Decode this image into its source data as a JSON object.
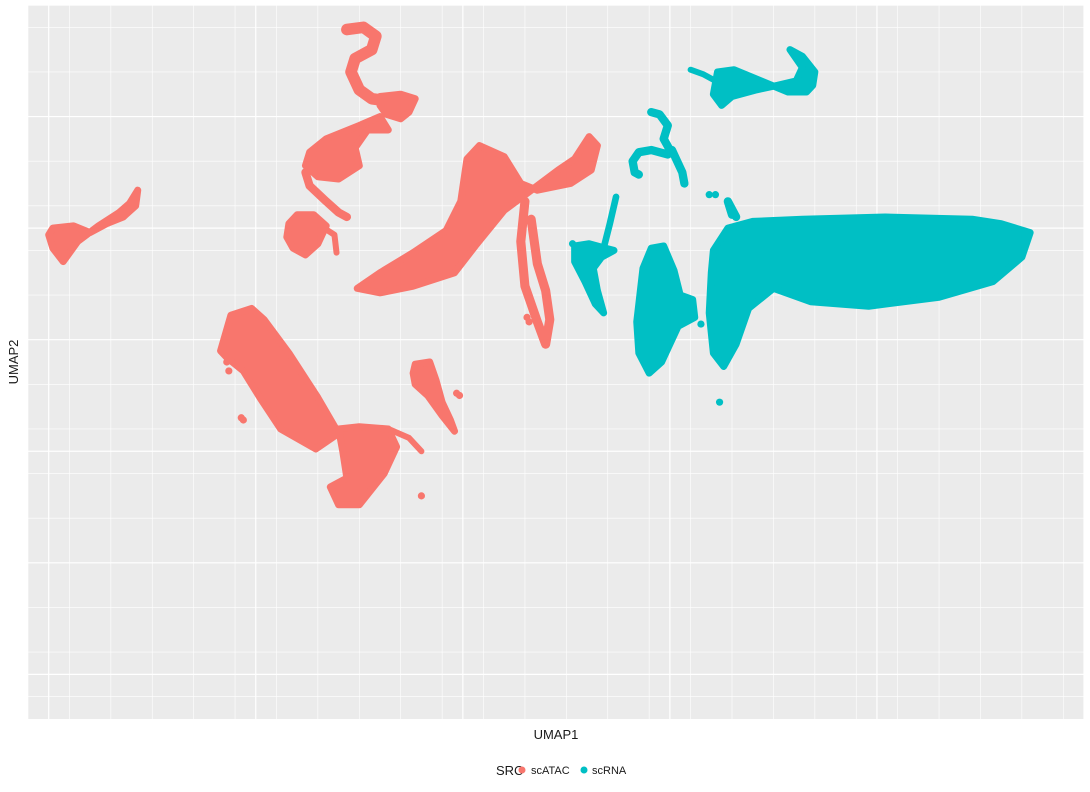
{
  "chart_data": {
    "type": "scatter",
    "xlabel": "UMAP1",
    "ylabel": "UMAP2",
    "xlim": [
      -15.5,
      10.0
    ],
    "ylim": [
      -11.0,
      5.0
    ],
    "grid": true,
    "legend": {
      "title": "SRC",
      "position": "bottom",
      "entries": [
        {
          "name": "scATAC",
          "color": "#F8766D"
        },
        {
          "name": "scRNA",
          "color": "#00BFC4"
        }
      ]
    },
    "series": [
      {
        "name": "scATAC",
        "color": "#F8766D",
        "clusters": [
          {
            "shape": "polyline",
            "width": 0.28,
            "points": [
              [
                -7.8,
                4.45
              ],
              [
                -7.4,
                4.5
              ],
              [
                -7.1,
                4.3
              ],
              [
                -7.2,
                4.0
              ],
              [
                -7.6,
                3.8
              ],
              [
                -7.7,
                3.5
              ],
              [
                -7.5,
                3.1
              ],
              [
                -7.2,
                2.9
              ],
              [
                -6.8,
                2.85
              ]
            ]
          },
          {
            "shape": "polygon",
            "points": [
              [
                -7.0,
                2.95
              ],
              [
                -6.5,
                3.0
              ],
              [
                -6.15,
                2.9
              ],
              [
                -6.3,
                2.6
              ],
              [
                -6.5,
                2.45
              ],
              [
                -6.85,
                2.55
              ],
              [
                -7.0,
                2.75
              ]
            ]
          },
          {
            "shape": "polygon",
            "points": [
              [
                -8.7,
                1.7
              ],
              [
                -8.3,
                2.0
              ],
              [
                -7.5,
                2.3
              ],
              [
                -7.0,
                2.5
              ],
              [
                -6.8,
                2.2
              ],
              [
                -7.3,
                2.2
              ],
              [
                -7.6,
                1.8
              ],
              [
                -7.5,
                1.4
              ],
              [
                -8.0,
                1.1
              ],
              [
                -8.5,
                1.15
              ],
              [
                -8.8,
                1.4
              ]
            ]
          },
          {
            "shape": "polyline",
            "width": 0.2,
            "points": [
              [
                -8.8,
                1.25
              ],
              [
                -8.7,
                0.95
              ],
              [
                -8.3,
                0.6
              ],
              [
                -8.0,
                0.35
              ],
              [
                -7.8,
                0.25
              ]
            ]
          },
          {
            "shape": "polygon",
            "points": [
              [
                -14.9,
                0.0
              ],
              [
                -14.4,
                0.05
              ],
              [
                -14.0,
                -0.1
              ],
              [
                -13.6,
                0.1
              ],
              [
                -13.2,
                0.25
              ],
              [
                -12.9,
                0.5
              ],
              [
                -12.85,
                0.85
              ],
              [
                -13.05,
                0.55
              ],
              [
                -13.3,
                0.35
              ],
              [
                -13.8,
                0.05
              ],
              [
                -14.3,
                -0.3
              ],
              [
                -14.65,
                -0.75
              ],
              [
                -14.9,
                -0.45
              ],
              [
                -15.0,
                -0.15
              ]
            ]
          },
          {
            "shape": "polygon",
            "points": [
              [
                -9.2,
                0.1
              ],
              [
                -9.0,
                0.3
              ],
              [
                -8.6,
                0.3
              ],
              [
                -8.3,
                0.05
              ],
              [
                -8.5,
                -0.35
              ],
              [
                -8.8,
                -0.6
              ],
              [
                -9.1,
                -0.45
              ],
              [
                -9.25,
                -0.2
              ]
            ]
          },
          {
            "shape": "polyline",
            "width": 0.12,
            "points": [
              [
                -8.35,
                0.0
              ],
              [
                -8.1,
                -0.15
              ],
              [
                -8.05,
                -0.55
              ]
            ]
          },
          {
            "shape": "polygon",
            "points": [
              [
                -7.55,
                -1.35
              ],
              [
                -7.0,
                -1.0
              ],
              [
                -6.2,
                -0.55
              ],
              [
                -5.4,
                -0.05
              ],
              [
                -5.05,
                0.6
              ],
              [
                -4.9,
                1.55
              ],
              [
                -4.6,
                1.85
              ],
              [
                -4.0,
                1.6
              ],
              [
                -3.6,
                1.0
              ],
              [
                -3.2,
                0.85
              ],
              [
                -2.4,
                1.0
              ],
              [
                -1.9,
                1.3
              ],
              [
                -1.75,
                1.85
              ],
              [
                -1.95,
                2.05
              ],
              [
                -2.3,
                1.55
              ],
              [
                -2.7,
                1.3
              ],
              [
                -3.2,
                0.95
              ],
              [
                -4.0,
                0.4
              ],
              [
                -4.7,
                -0.4
              ],
              [
                -5.2,
                -1.0
              ],
              [
                -6.2,
                -1.3
              ],
              [
                -7.0,
                -1.45
              ]
            ]
          },
          {
            "shape": "polyline",
            "width": 0.22,
            "points": [
              [
                -3.5,
                0.6
              ],
              [
                -3.6,
                -0.3
              ],
              [
                -3.5,
                -1.3
              ],
              [
                -3.2,
                -2.1
              ],
              [
                -3.0,
                -2.6
              ],
              [
                -2.9,
                -2.05
              ],
              [
                -3.0,
                -1.4
              ],
              [
                -3.2,
                -0.8
              ],
              [
                -3.35,
                0.2
              ]
            ]
          },
          {
            "shape": "polygon",
            "points": [
              [
                -10.85,
                -2.75
              ],
              [
                -10.6,
                -1.95
              ],
              [
                -10.1,
                -1.8
              ],
              [
                -9.8,
                -2.05
              ],
              [
                -9.2,
                -2.8
              ],
              [
                -8.5,
                -3.8
              ],
              [
                -8.0,
                -4.6
              ],
              [
                -8.55,
                -4.95
              ],
              [
                -9.4,
                -4.5
              ],
              [
                -9.9,
                -3.8
              ],
              [
                -10.3,
                -3.2
              ],
              [
                -10.7,
                -2.9
              ]
            ]
          },
          {
            "shape": "polygon",
            "points": [
              [
                -8.0,
                -4.5
              ],
              [
                -7.5,
                -4.45
              ],
              [
                -6.8,
                -4.5
              ],
              [
                -6.6,
                -4.9
              ],
              [
                -6.9,
                -5.5
              ],
              [
                -7.5,
                -6.2
              ],
              [
                -8.0,
                -6.2
              ],
              [
                -8.2,
                -5.8
              ],
              [
                -7.8,
                -5.6
              ],
              [
                -7.9,
                -5.0
              ]
            ]
          },
          {
            "shape": "polyline",
            "width": 0.12,
            "points": [
              [
                -6.8,
                -4.5
              ],
              [
                -6.3,
                -4.7
              ],
              [
                -6.0,
                -5.0
              ]
            ]
          },
          {
            "shape": "polygon",
            "points": [
              [
                -6.15,
                -3.05
              ],
              [
                -5.8,
                -3.0
              ],
              [
                -5.65,
                -3.4
              ],
              [
                -5.5,
                -3.9
              ],
              [
                -5.3,
                -4.3
              ],
              [
                -5.2,
                -4.55
              ],
              [
                -5.5,
                -4.2
              ],
              [
                -5.85,
                -3.75
              ],
              [
                -6.15,
                -3.5
              ],
              [
                -6.2,
                -3.25
              ]
            ]
          },
          {
            "shape": "points",
            "points": [
              [
                -10.35,
                -4.25
              ],
              [
                -10.3,
                -4.3
              ],
              [
                -5.15,
                -3.7
              ],
              [
                -5.08,
                -3.75
              ],
              [
                -6.0,
                -6.0
              ],
              [
                -10.7,
                -3.0
              ],
              [
                -10.65,
                -3.2
              ],
              [
                -3.45,
                -2.0
              ],
              [
                -3.4,
                -2.1
              ]
            ]
          }
        ]
      },
      {
        "name": "scRNA",
        "color": "#00BFC4",
        "clusters": [
          {
            "shape": "polygon",
            "points": [
              [
                -0.8,
                -2.1
              ],
              [
                -0.65,
                -0.9
              ],
              [
                -0.45,
                -0.45
              ],
              [
                -0.15,
                -0.4
              ],
              [
                0.1,
                -0.95
              ],
              [
                0.25,
                -1.5
              ],
              [
                0.55,
                -1.6
              ],
              [
                0.6,
                -2.0
              ],
              [
                0.2,
                -2.2
              ],
              [
                -0.2,
                -3.0
              ],
              [
                -0.5,
                -3.25
              ],
              [
                -0.75,
                -2.8
              ]
            ]
          },
          {
            "shape": "polygon",
            "points": [
              [
                1.0,
                -1.0
              ],
              [
                1.05,
                -0.5
              ],
              [
                1.4,
                0.0
              ],
              [
                2.0,
                0.15
              ],
              [
                3.2,
                0.2
              ],
              [
                5.2,
                0.25
              ],
              [
                7.3,
                0.2
              ],
              [
                8.0,
                0.1
              ],
              [
                8.7,
                -0.1
              ],
              [
                8.5,
                -0.65
              ],
              [
                7.8,
                -1.2
              ],
              [
                6.5,
                -1.55
              ],
              [
                4.8,
                -1.75
              ],
              [
                3.4,
                -1.65
              ],
              [
                2.5,
                -1.35
              ],
              [
                1.9,
                -1.8
              ],
              [
                1.6,
                -2.6
              ],
              [
                1.3,
                -3.1
              ],
              [
                1.05,
                -2.8
              ],
              [
                0.95,
                -1.9
              ]
            ]
          },
          {
            "shape": "polyline",
            "width": 0.2,
            "points": [
              [
                1.5,
                0.3
              ],
              [
                1.4,
                0.6
              ],
              [
                1.6,
                0.25
              ]
            ]
          },
          {
            "shape": "polygon",
            "points": [
              [
                -2.3,
                -0.4
              ],
              [
                -1.95,
                -0.35
              ],
              [
                -1.55,
                -0.45
              ],
              [
                -1.35,
                -0.5
              ],
              [
                -1.65,
                -0.65
              ],
              [
                -1.85,
                -0.9
              ],
              [
                -1.75,
                -1.4
              ],
              [
                -1.6,
                -1.9
              ],
              [
                -1.8,
                -1.7
              ],
              [
                -2.05,
                -1.2
              ],
              [
                -2.3,
                -0.75
              ]
            ]
          },
          {
            "shape": "polyline",
            "width": 0.16,
            "points": [
              [
                -1.6,
                -0.45
              ],
              [
                -1.45,
                0.1
              ],
              [
                -1.3,
                0.7
              ]
            ]
          },
          {
            "shape": "polyline",
            "width": 0.2,
            "points": [
              [
                -0.45,
                2.6
              ],
              [
                -0.25,
                2.55
              ],
              [
                -0.05,
                2.3
              ],
              [
                -0.15,
                2.0
              ],
              [
                0.0,
                1.75
              ],
              [
                -0.05,
                1.65
              ],
              [
                -0.45,
                1.75
              ],
              [
                -0.75,
                1.7
              ],
              [
                -0.9,
                1.5
              ],
              [
                -0.85,
                1.25
              ],
              [
                -0.75,
                1.2
              ]
            ]
          },
          {
            "shape": "polyline",
            "width": 0.2,
            "points": [
              [
                0.05,
                1.75
              ],
              [
                0.15,
                1.55
              ],
              [
                0.3,
                1.25
              ],
              [
                0.35,
                1.0
              ]
            ]
          },
          {
            "shape": "polygon",
            "points": [
              [
                1.15,
                3.5
              ],
              [
                1.55,
                3.55
              ],
              [
                2.2,
                3.3
              ],
              [
                2.85,
                3.05
              ],
              [
                3.3,
                3.05
              ],
              [
                3.45,
                3.2
              ],
              [
                3.5,
                3.5
              ],
              [
                3.2,
                3.85
              ],
              [
                2.9,
                4.0
              ],
              [
                3.2,
                3.6
              ],
              [
                3.05,
                3.3
              ],
              [
                2.6,
                3.2
              ],
              [
                2.1,
                3.1
              ],
              [
                1.5,
                2.95
              ],
              [
                1.25,
                2.75
              ],
              [
                1.05,
                3.0
              ]
            ]
          },
          {
            "shape": "polyline",
            "width": 0.14,
            "points": [
              [
                0.5,
                3.55
              ],
              [
                0.8,
                3.45
              ],
              [
                1.1,
                3.3
              ]
            ]
          },
          {
            "shape": "points",
            "points": [
              [
                0.95,
                0.75
              ],
              [
                1.1,
                0.75
              ],
              [
                1.2,
                -3.9
              ],
              [
                -2.35,
                -0.35
              ],
              [
                0.75,
                -2.15
              ]
            ]
          }
        ]
      }
    ]
  }
}
